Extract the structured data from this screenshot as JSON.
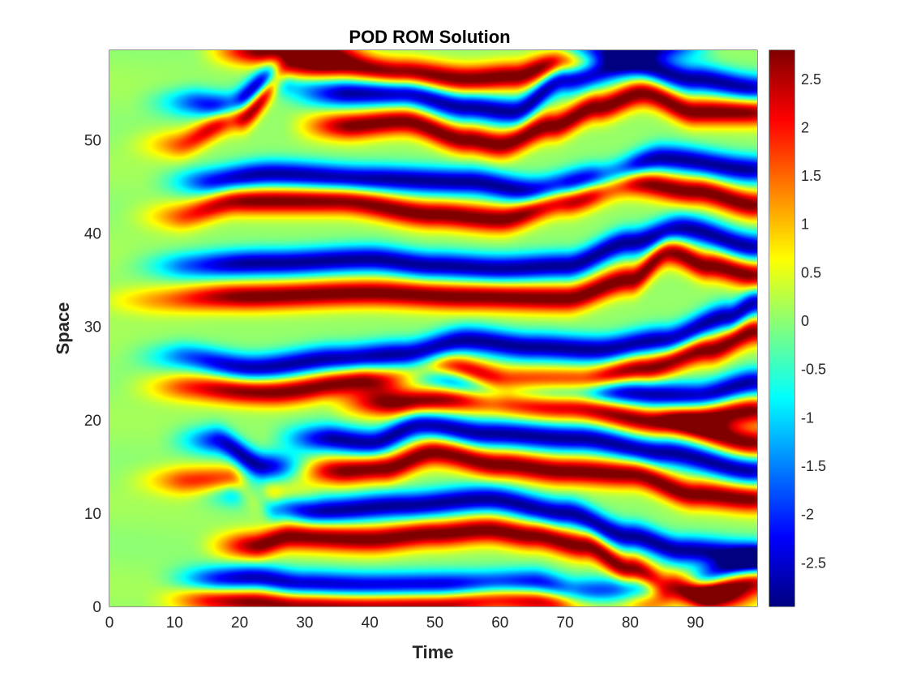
{
  "chart_data": {
    "type": "heatmap",
    "title": "POD ROM Solution",
    "xlabel": "Time",
    "ylabel": "Space",
    "xlim": [
      0,
      99.5
    ],
    "ylim": [
      0,
      59.6
    ],
    "x_ticks": [
      0,
      10,
      20,
      30,
      40,
      50,
      60,
      70,
      80,
      90
    ],
    "x_tick_labels": [
      "0",
      "10",
      "20",
      "30",
      "40",
      "50",
      "60",
      "70",
      "80",
      "90"
    ],
    "y_ticks": [
      0,
      10,
      20,
      30,
      40,
      50
    ],
    "y_tick_labels": [
      "0",
      "10",
      "20",
      "30",
      "40",
      "50"
    ],
    "colormap": "jet",
    "clim": [
      -2.95,
      2.8
    ],
    "colorbar_ticks": [
      2.5,
      2,
      1.5,
      1,
      0.5,
      0,
      -0.5,
      -1,
      -1.5,
      -2,
      -2.5
    ],
    "colorbar_tick_labels": [
      "2.5",
      "2",
      "1.5",
      "1",
      "0.5",
      "0",
      "-0.5",
      "-1",
      "-1.5",
      "-2",
      "-2.5"
    ],
    "grid": false,
    "stripes": [
      {
        "sign": 1,
        "points": [
          [
            14,
            0.8
          ],
          [
            22,
            0.6
          ],
          [
            28,
            0.3
          ],
          [
            35,
            0.2
          ],
          [
            50,
            0.3
          ],
          [
            60,
            1.0
          ],
          [
            70,
            0.6
          ]
        ]
      },
      {
        "sign": -1,
        "points": [
          [
            15,
            2.8
          ],
          [
            22,
            3.0
          ],
          [
            30,
            2.3
          ],
          [
            40,
            2.1
          ],
          [
            55,
            2.2
          ],
          [
            65,
            2.4
          ],
          [
            72,
            1.4
          ],
          [
            85,
            1.6
          ],
          [
            99.5,
            4.5
          ]
        ]
      },
      {
        "sign": 1,
        "points": [
          [
            82,
            0.8
          ],
          [
            90,
            1.8
          ],
          [
            99.5,
            2.8
          ]
        ]
      },
      {
        "sign": 1,
        "points": [
          [
            22,
            6.5
          ],
          [
            28,
            7.5
          ],
          [
            40,
            7.2
          ],
          [
            50,
            7.8
          ],
          [
            58,
            8.2
          ],
          [
            65,
            7.6
          ],
          [
            73,
            6.5
          ],
          [
            80,
            4.0
          ],
          [
            86,
            2.2
          ],
          [
            93,
            1.0
          ]
        ]
      },
      {
        "sign": -1,
        "points": [
          [
            20,
            12.5
          ],
          [
            26,
            10.8
          ],
          [
            32,
            10.2
          ],
          [
            45,
            10.8
          ],
          [
            58,
            11.5
          ],
          [
            70,
            10.0
          ],
          [
            80,
            7.5
          ],
          [
            88,
            6.0
          ],
          [
            99.5,
            5.5
          ]
        ]
      },
      {
        "sign": 1,
        "points": [
          [
            10,
            13.5
          ],
          [
            18,
            13.4
          ],
          [
            24,
            11.5
          ]
        ]
      },
      {
        "sign": -1,
        "points": [
          [
            16,
            17.8
          ],
          [
            24,
            15.0
          ]
        ]
      },
      {
        "sign": 1,
        "points": [
          [
            35,
            14.5
          ],
          [
            42,
            14.8
          ],
          [
            50,
            16.5
          ],
          [
            60,
            15.2
          ],
          [
            70,
            14.5
          ],
          [
            80,
            14.2
          ],
          [
            90,
            12.0
          ],
          [
            99.5,
            11.5
          ]
        ]
      },
      {
        "sign": -1,
        "points": [
          [
            33,
            18.0
          ],
          [
            40,
            17.5
          ],
          [
            48,
            19.5
          ],
          [
            58,
            18.5
          ],
          [
            72,
            18.0
          ],
          [
            85,
            16.5
          ],
          [
            99.5,
            14.5
          ]
        ]
      },
      {
        "sign": 1,
        "points": [
          [
            42,
            21.8
          ],
          [
            55,
            22.3
          ],
          [
            70,
            21.5
          ],
          [
            85,
            19.8
          ],
          [
            99.5,
            17.5
          ]
        ]
      },
      {
        "sign": -1,
        "points": [
          [
            48,
            24.8
          ],
          [
            60,
            23.0
          ],
          [
            75,
            23.0
          ],
          [
            90,
            22.5
          ],
          [
            99.5,
            24.0
          ]
        ]
      },
      {
        "sign": 1,
        "points": [
          [
            92,
            20.5
          ],
          [
            99.5,
            21.0
          ]
        ]
      },
      {
        "sign": 1,
        "points": [
          [
            10,
            23.5
          ],
          [
            25,
            23.0
          ],
          [
            40,
            24.3
          ],
          [
            52,
            25.5
          ],
          [
            62,
            24.0
          ],
          [
            72,
            24.0
          ],
          [
            82,
            25.5
          ],
          [
            92,
            27.5
          ],
          [
            99.5,
            29.5
          ]
        ]
      },
      {
        "sign": -1,
        "points": [
          [
            10,
            26.8
          ],
          [
            22,
            25.5
          ],
          [
            35,
            26.5
          ],
          [
            45,
            27.0
          ],
          [
            55,
            28.5
          ],
          [
            65,
            27.8
          ],
          [
            75,
            27.5
          ],
          [
            85,
            28.5
          ],
          [
            95,
            31.0
          ],
          [
            99.5,
            32.5
          ]
        ]
      },
      {
        "sign": 1,
        "points": [
          [
            5,
            32.8
          ],
          [
            20,
            33.2
          ],
          [
            40,
            33.6
          ],
          [
            55,
            33.2
          ],
          [
            70,
            33.0
          ],
          [
            80,
            35.0
          ],
          [
            86,
            38.0
          ],
          [
            92,
            36.5
          ],
          [
            99.5,
            35.5
          ]
        ]
      },
      {
        "sign": -1,
        "points": [
          [
            10,
            36.5
          ],
          [
            25,
            36.8
          ],
          [
            40,
            37.2
          ],
          [
            50,
            36.5
          ],
          [
            60,
            36.2
          ],
          [
            70,
            36.5
          ],
          [
            80,
            39.0
          ],
          [
            88,
            40.5
          ],
          [
            99.5,
            38.5
          ]
        ]
      },
      {
        "sign": 1,
        "points": [
          [
            10,
            41.8
          ],
          [
            20,
            43.5
          ],
          [
            35,
            43.5
          ],
          [
            50,
            42.0
          ],
          [
            60,
            41.5
          ],
          [
            70,
            43.5
          ],
          [
            80,
            45.5
          ],
          [
            90,
            44.5
          ],
          [
            99.5,
            43.0
          ]
        ]
      },
      {
        "sign": -1,
        "points": [
          [
            14,
            45.5
          ],
          [
            25,
            46.3
          ],
          [
            40,
            45.8
          ],
          [
            55,
            45.5
          ],
          [
            65,
            44.5
          ],
          [
            75,
            45.8
          ],
          [
            85,
            48.0
          ],
          [
            99.5,
            46.8
          ]
        ]
      },
      {
        "sign": 1,
        "points": [
          [
            10,
            49.5
          ],
          [
            20,
            52.5
          ],
          [
            28,
            57.5
          ],
          [
            35,
            58.0
          ],
          [
            45,
            57.2
          ],
          [
            55,
            56.5
          ],
          [
            62,
            56.8
          ],
          [
            70,
            58.5
          ]
        ]
      },
      {
        "sign": 1,
        "points": [
          [
            36,
            51.5
          ],
          [
            45,
            52.0
          ],
          [
            55,
            50.0
          ],
          [
            60,
            49.5
          ],
          [
            68,
            51.5
          ],
          [
            75,
            53.5
          ],
          [
            82,
            55.0
          ],
          [
            90,
            53.0
          ],
          [
            99.5,
            53.0
          ]
        ]
      },
      {
        "sign": -1,
        "points": [
          [
            35,
            55.0
          ],
          [
            45,
            55.0
          ],
          [
            55,
            53.5
          ],
          [
            62,
            53.0
          ],
          [
            70,
            56.5
          ],
          [
            80,
            58.0
          ],
          [
            90,
            56.5
          ],
          [
            99.5,
            55.5
          ]
        ]
      },
      {
        "sign": -1,
        "points": [
          [
            12,
            54.0
          ],
          [
            18,
            53.5
          ],
          [
            25,
            56.5
          ]
        ]
      },
      {
        "sign": 1,
        "points": [
          [
            22,
            59.5
          ],
          [
            32,
            59.8
          ]
        ]
      },
      {
        "sign": -1,
        "points": [
          [
            74,
            59.5
          ],
          [
            85,
            60.0
          ]
        ]
      }
    ]
  }
}
